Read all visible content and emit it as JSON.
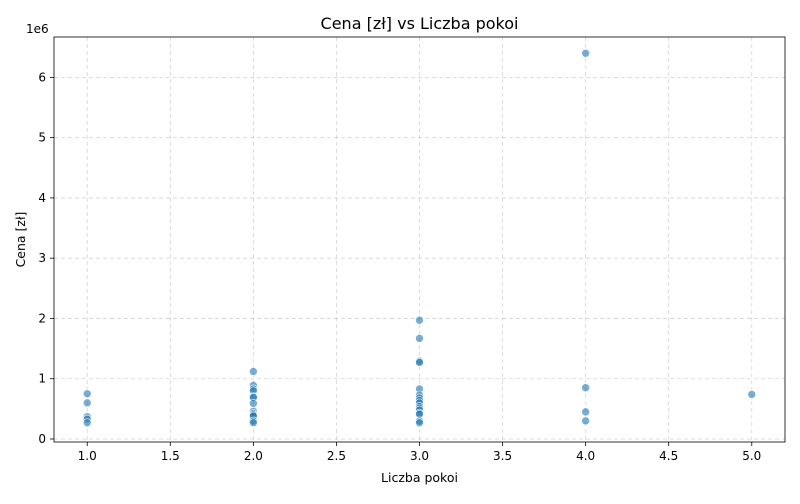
{
  "chart_data": {
    "type": "scatter",
    "title": "Cena [zł] vs Liczba pokoi",
    "xlabel": "Liczba pokoi",
    "ylabel": "Cena [zł]",
    "y_offset_label": "1e6",
    "xlim": [
      0.8,
      5.2
    ],
    "ylim": [
      -50000,
      6670000
    ],
    "x_ticks": [
      1.0,
      1.5,
      2.0,
      2.5,
      3.0,
      3.5,
      4.0,
      4.5,
      5.0
    ],
    "x_tick_labels": [
      "1.0",
      "1.5",
      "2.0",
      "2.5",
      "3.0",
      "3.5",
      "4.0",
      "4.5",
      "5.0"
    ],
    "y_ticks": [
      0,
      1000000,
      2000000,
      3000000,
      4000000,
      5000000,
      6000000
    ],
    "y_tick_labels": [
      "0",
      "1",
      "2",
      "3",
      "4",
      "5",
      "6"
    ],
    "grid": true,
    "color": "#1f77b4",
    "points": [
      {
        "x": 1,
        "y": 750000
      },
      {
        "x": 1,
        "y": 600000
      },
      {
        "x": 1,
        "y": 370000
      },
      {
        "x": 1,
        "y": 330000
      },
      {
        "x": 1,
        "y": 270000
      },
      {
        "x": 2,
        "y": 1120000
      },
      {
        "x": 2,
        "y": 890000
      },
      {
        "x": 2,
        "y": 830000
      },
      {
        "x": 2,
        "y": 800000
      },
      {
        "x": 2,
        "y": 700000
      },
      {
        "x": 2,
        "y": 690000
      },
      {
        "x": 2,
        "y": 590000
      },
      {
        "x": 2,
        "y": 460000
      },
      {
        "x": 2,
        "y": 420000
      },
      {
        "x": 2,
        "y": 400000
      },
      {
        "x": 2,
        "y": 380000
      },
      {
        "x": 2,
        "y": 300000
      },
      {
        "x": 2,
        "y": 270000
      },
      {
        "x": 3,
        "y": 1970000
      },
      {
        "x": 3,
        "y": 1670000
      },
      {
        "x": 3,
        "y": 1290000
      },
      {
        "x": 3,
        "y": 1270000
      },
      {
        "x": 3,
        "y": 830000
      },
      {
        "x": 3,
        "y": 730000
      },
      {
        "x": 3,
        "y": 680000
      },
      {
        "x": 3,
        "y": 640000
      },
      {
        "x": 3,
        "y": 600000
      },
      {
        "x": 3,
        "y": 540000
      },
      {
        "x": 3,
        "y": 510000
      },
      {
        "x": 3,
        "y": 480000
      },
      {
        "x": 3,
        "y": 430000
      },
      {
        "x": 3,
        "y": 410000
      },
      {
        "x": 3,
        "y": 300000
      },
      {
        "x": 3,
        "y": 270000
      },
      {
        "x": 4,
        "y": 6400000
      },
      {
        "x": 4,
        "y": 850000
      },
      {
        "x": 4,
        "y": 450000
      },
      {
        "x": 4,
        "y": 300000
      },
      {
        "x": 5,
        "y": 740000
      }
    ]
  }
}
